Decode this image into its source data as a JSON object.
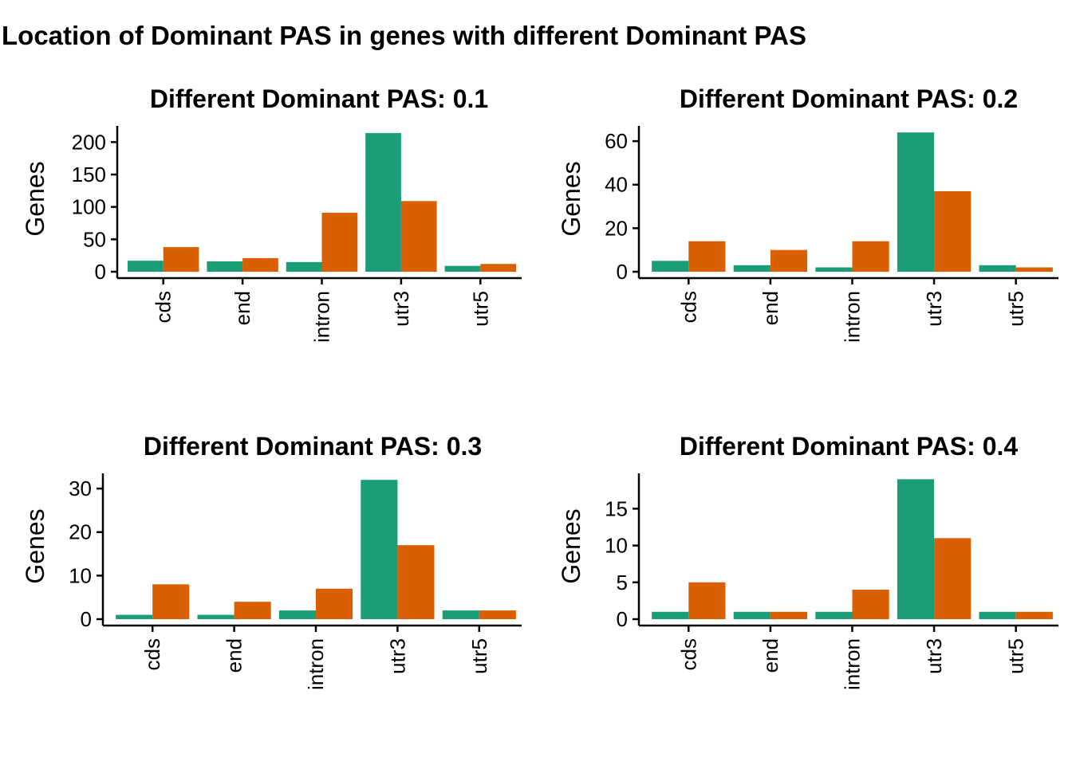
{
  "page_title": "Location of Dominant PAS in genes with different Dominant PAS",
  "colors": {
    "series_a": "#1b9e77",
    "series_b": "#d95f02"
  },
  "chart_data": [
    {
      "type": "bar",
      "title": "Different Dominant PAS: 0.1",
      "ylabel": "Genes",
      "xlabel": "",
      "categories": [
        "cds",
        "end",
        "intron",
        "utr3",
        "utr5"
      ],
      "series": [
        {
          "values": [
            17,
            16,
            15,
            214,
            9
          ]
        },
        {
          "values": [
            38,
            21,
            91,
            109,
            12
          ]
        }
      ],
      "ylim": [
        0,
        225
      ],
      "yticks": [
        0,
        50,
        100,
        150,
        200
      ]
    },
    {
      "type": "bar",
      "title": "Different Dominant PAS: 0.2",
      "ylabel": "Genes",
      "xlabel": "",
      "categories": [
        "cds",
        "end",
        "intron",
        "utr3",
        "utr5"
      ],
      "series": [
        {
          "values": [
            5,
            3,
            2,
            64,
            3
          ]
        },
        {
          "values": [
            14,
            10,
            14,
            37,
            2
          ]
        }
      ],
      "ylim": [
        0,
        67
      ],
      "yticks": [
        0,
        20,
        40,
        60
      ]
    },
    {
      "type": "bar",
      "title": "Different Dominant PAS: 0.3",
      "ylabel": "Genes",
      "xlabel": "",
      "categories": [
        "cds",
        "end",
        "intron",
        "utr3",
        "utr5"
      ],
      "series": [
        {
          "values": [
            1,
            1,
            2,
            32,
            2
          ]
        },
        {
          "values": [
            8,
            4,
            7,
            17,
            2
          ]
        }
      ],
      "ylim": [
        0,
        33.5
      ],
      "yticks": [
        0,
        10,
        20,
        30
      ]
    },
    {
      "type": "bar",
      "title": "Different Dominant PAS: 0.4",
      "ylabel": "Genes",
      "xlabel": "",
      "categories": [
        "cds",
        "end",
        "intron",
        "utr3",
        "utr5"
      ],
      "series": [
        {
          "values": [
            1,
            1,
            1,
            19,
            1
          ]
        },
        {
          "values": [
            5,
            1,
            4,
            11,
            1
          ]
        }
      ],
      "ylim": [
        0,
        19.8
      ],
      "yticks": [
        0,
        5,
        10,
        15
      ]
    }
  ]
}
